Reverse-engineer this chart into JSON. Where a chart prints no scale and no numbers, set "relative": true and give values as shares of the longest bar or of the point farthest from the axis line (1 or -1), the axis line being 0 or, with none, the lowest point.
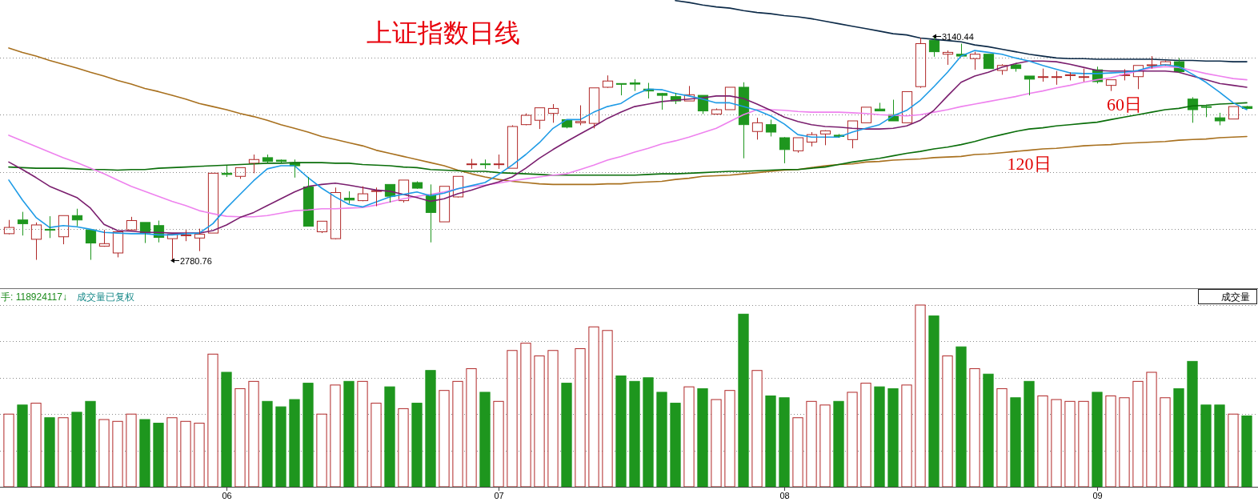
{
  "chart_data": [
    {
      "type": "candlestick",
      "title": "上证指数日线",
      "categories": [
        null,
        null,
        null,
        null,
        null,
        null,
        null,
        null,
        null,
        null,
        null,
        null,
        null,
        null,
        null,
        null,
        null,
        null,
        null,
        null,
        null,
        null,
        null,
        null,
        null,
        null,
        null,
        null,
        null,
        null,
        null,
        null,
        null,
        null,
        null,
        null,
        null,
        null,
        null,
        null,
        null,
        null,
        null,
        null,
        null,
        null,
        null,
        null,
        null,
        null,
        null,
        null,
        null,
        null,
        null,
        null,
        null,
        null,
        null,
        null,
        null,
        null,
        null,
        null,
        null,
        null,
        null,
        null,
        null,
        null,
        null,
        null,
        null,
        null,
        null,
        null,
        null,
        null,
        null,
        null,
        null,
        null,
        null,
        null,
        null,
        null,
        null,
        null,
        null,
        null,
        null,
        null
      ],
      "ohlc": [
        [
          2824,
          2846,
          2823,
          2834
        ],
        [
          2846,
          2859,
          2821,
          2840
        ],
        [
          2815,
          2842,
          2782,
          2838
        ],
        [
          2831,
          2852,
          2817,
          2830
        ],
        [
          2819,
          2853,
          2807,
          2853
        ],
        [
          2853,
          2864,
          2836,
          2846
        ],
        [
          2830,
          2830,
          2782,
          2809
        ],
        [
          2804,
          2830,
          2803,
          2808
        ],
        [
          2793,
          2827,
          2786,
          2827
        ],
        [
          2830,
          2851,
          2830,
          2845
        ],
        [
          2842,
          2842,
          2809,
          2825
        ],
        [
          2837,
          2845,
          2810,
          2818
        ],
        [
          2816,
          2823,
          2780.76,
          2823
        ],
        [
          2821,
          2830,
          2812,
          2822
        ],
        [
          2817,
          2832,
          2796,
          2823
        ],
        [
          2825,
          2921,
          2825,
          2921
        ],
        [
          2921,
          2933,
          2915,
          2919
        ],
        [
          2916,
          2930,
          2912,
          2930
        ],
        [
          2937,
          2951,
          2921,
          2943
        ],
        [
          2946,
          2951,
          2938,
          2940
        ],
        [
          2942,
          2943,
          2938,
          2940
        ],
        [
          2938,
          2943,
          2914,
          2933
        ],
        [
          2899,
          2915,
          2836,
          2836
        ],
        [
          2827,
          2844,
          2825,
          2844
        ],
        [
          2816,
          2898,
          2815,
          2890
        ],
        [
          2881,
          2892,
          2872,
          2878
        ],
        [
          2877,
          2900,
          2876,
          2888
        ],
        [
          2892,
          2898,
          2868,
          2893
        ],
        [
          2903,
          2903,
          2874,
          2884
        ],
        [
          2877,
          2910,
          2874,
          2910
        ],
        [
          2906,
          2908,
          2896,
          2897
        ],
        [
          2885,
          2903,
          2810,
          2858
        ],
        [
          2843,
          2900,
          2843,
          2900
        ],
        [
          2883,
          2916,
          2882,
          2916
        ],
        [
          2935,
          2944,
          2928,
          2936
        ],
        [
          2936,
          2943,
          2928,
          2935
        ],
        [
          2935,
          2951,
          2928,
          2936
        ],
        [
          2929,
          2998,
          2929,
          2996
        ],
        [
          2999,
          3017,
          2998,
          3014
        ],
        [
          3006,
          3026,
          2992,
          3026
        ],
        [
          3017,
          3032,
          3002,
          3025
        ],
        [
          3007,
          3007,
          2993,
          2995
        ],
        [
          3002,
          3030,
          2998,
          3004
        ],
        [
          3001,
          3058,
          2993,
          3058
        ],
        [
          3059,
          3078,
          3058,
          3069
        ],
        [
          3065,
          3065,
          3046,
          3064
        ],
        [
          3066,
          3072,
          3053,
          3064
        ],
        [
          3056,
          3066,
          3041,
          3053
        ],
        [
          3049,
          3050,
          3023,
          3046
        ],
        [
          3044,
          3050,
          3032,
          3037
        ],
        [
          3037,
          3061,
          3037,
          3047
        ],
        [
          3046,
          3046,
          3016,
          3021
        ],
        [
          3016,
          3025,
          3015,
          3023
        ],
        [
          3023,
          3059,
          3023,
          3059
        ],
        [
          3059,
          3067,
          2945,
          2999
        ],
        [
          2988,
          3010,
          2975,
          3002
        ],
        [
          2999,
          3007,
          2980,
          2987
        ],
        [
          2978,
          2979,
          2937,
          2959
        ],
        [
          2957,
          2978,
          2954,
          2978
        ],
        [
          2971,
          2987,
          2964,
          2983
        ],
        [
          2984,
          2990,
          2966,
          2989
        ],
        [
          2982,
          2984,
          2978,
          2980
        ],
        [
          2975,
          3005,
          2961,
          3005
        ],
        [
          3002,
          3027,
          3002,
          3027
        ],
        [
          3024,
          3034,
          3021,
          3021
        ],
        [
          3015,
          3039,
          3005,
          3005
        ],
        [
          3002,
          3052,
          3002,
          3052
        ],
        [
          3060,
          3138,
          3058,
          3129
        ],
        [
          3134,
          3140.44,
          3108,
          3116
        ],
        [
          3112,
          3118,
          3095,
          3115
        ],
        [
          3112,
          3129,
          3109,
          3109
        ],
        [
          3105,
          3116,
          3087,
          3112
        ],
        [
          3112,
          3112,
          3089,
          3089
        ],
        [
          3086,
          3096,
          3079,
          3094
        ],
        [
          3095,
          3096,
          3084,
          3089
        ],
        [
          3077,
          3077,
          3046,
          3072
        ],
        [
          3075,
          3089,
          3068,
          3076
        ],
        [
          3075,
          3085,
          3063,
          3076
        ],
        [
          3078,
          3083,
          3070,
          3079
        ],
        [
          3075,
          3089,
          3068,
          3076
        ],
        [
          3087,
          3092,
          3065,
          3068
        ],
        [
          3062,
          3071,
          3053,
          3071
        ],
        [
          3078,
          3088,
          3070,
          3079
        ],
        [
          3076,
          3094,
          3056,
          3094
        ],
        [
          3094,
          3109,
          3089,
          3095
        ],
        [
          3095,
          3102,
          3094,
          3100
        ],
        [
          3100,
          3106,
          3082,
          3084
        ],
        [
          3040,
          3043,
          3002,
          3023
        ],
        [
          3028,
          3031,
          3011,
          3027
        ],
        [
          3010,
          3018,
          2998,
          3005
        ],
        [
          3008,
          3028,
          3008,
          3028
        ],
        [
          3028,
          3029,
          3024,
          3025
        ]
      ],
      "colors": [
        "#b02828",
        "#1e961e",
        "#b02828",
        "#1e961e",
        "#b02828",
        "#1e961e",
        "#1e961e",
        "#b02828",
        "#b02828",
        "#b02828",
        "#1e961e",
        "#1e961e",
        "#b02828",
        "#b02828",
        "#b02828",
        "#b02828",
        "#1e961e",
        "#b02828",
        "#b02828",
        "#1e961e",
        "#1e961e",
        "#1e961e",
        "#1e961e",
        "#b02828",
        "#b02828",
        "#1e961e",
        "#b02828",
        "#b02828",
        "#1e961e",
        "#b02828",
        "#1e961e",
        "#1e961e",
        "#b02828",
        "#b02828",
        "#b02828",
        "#1e961e",
        "#b02828",
        "#b02828",
        "#b02828",
        "#b02828",
        "#b02828",
        "#1e961e",
        "#b02828",
        "#b02828",
        "#b02828",
        "#1e961e",
        "#1e961e",
        "#1e961e",
        "#1e961e",
        "#1e961e",
        "#b02828",
        "#1e961e",
        "#b02828",
        "#b02828",
        "#1e961e",
        "#b02828",
        "#1e961e",
        "#1e961e",
        "#b02828",
        "#b02828",
        "#b02828",
        "#1e961e",
        "#b02828",
        "#b02828",
        "#1e961e",
        "#1e961e",
        "#b02828",
        "#b02828",
        "#1e961e",
        "#b02828",
        "#1e961e",
        "#b02828",
        "#1e961e",
        "#b02828",
        "#1e961e",
        "#1e961e",
        "#b02828",
        "#b02828",
        "#b02828",
        "#b02828",
        "#1e961e",
        "#b02828",
        "#b02828",
        "#b02828",
        "#b02828",
        "#b02828",
        "#1e961e",
        "#1e961e",
        "#1e961e",
        "#1e961e",
        "#b02828",
        "#1e961e"
      ],
      "series": [
        {
          "type": "line",
          "color": "#0c2a48",
          "values": [
            null,
            null,
            null,
            null,
            null,
            null,
            null,
            null,
            null,
            null,
            null,
            null,
            null,
            null,
            null,
            null,
            null,
            null,
            null,
            null,
            null,
            null,
            null,
            null,
            null,
            null,
            null,
            null,
            null,
            null,
            null,
            null,
            null,
            null,
            null,
            null,
            null,
            null,
            null,
            null,
            null,
            null,
            null,
            null,
            null,
            null,
            null,
            null,
            null,
            3198,
            3195,
            3191,
            3188,
            3186,
            3182,
            3179,
            3177,
            3174,
            3172,
            3169,
            3165,
            3161,
            3157,
            3153,
            3149,
            3145,
            3143,
            3138,
            3136,
            3134,
            3132,
            3127,
            3124,
            3120,
            3116,
            3112,
            3109,
            3106,
            3105,
            3105,
            3104,
            3104,
            3104,
            3104,
            3104,
            3103,
            3102,
            3102,
            3101,
            3101,
            3100,
            3100
          ]
        },
        {
          "type": "line",
          "name": "120日",
          "color": "#a8701e",
          "values": [
            3122,
            3115,
            3109,
            3102,
            3096,
            3090,
            3083,
            3077,
            3070,
            3064,
            3057,
            3052,
            3046,
            3040,
            3033,
            3028,
            3023,
            3017,
            3012,
            3006,
            2999,
            2993,
            2987,
            2980,
            2975,
            2970,
            2965,
            2958,
            2953,
            2948,
            2943,
            2938,
            2933,
            2926,
            2920,
            2915,
            2911,
            2908,
            2906,
            2904,
            2903,
            2903,
            2903,
            2903,
            2904,
            2904,
            2906,
            2907,
            2908,
            2911,
            2913,
            2916,
            2917,
            2918,
            2920,
            2922,
            2924,
            2926,
            2927,
            2930,
            2933,
            2935,
            2936,
            2939,
            2940,
            2942,
            2943,
            2944,
            2946,
            2947,
            2948,
            2951,
            2952,
            2954,
            2956,
            2958,
            2960,
            2961,
            2963,
            2965,
            2966,
            2967,
            2969,
            2970,
            2971,
            2972,
            2974,
            2975,
            2976,
            2978,
            2979,
            2980
          ]
        },
        {
          "type": "line",
          "name": "60日",
          "color": "#0a6e0a",
          "values": [
            2931,
            2930,
            2929,
            2929,
            2929,
            2928,
            2927,
            2927,
            2926,
            2927,
            2927,
            2929,
            2930,
            2931,
            2932,
            2933,
            2934,
            2935,
            2936,
            2937,
            2937,
            2938,
            2938,
            2938,
            2937,
            2937,
            2935,
            2934,
            2933,
            2931,
            2930,
            2927,
            2926,
            2925,
            2924,
            2924,
            2922,
            2921,
            2920,
            2919,
            2918,
            2918,
            2918,
            2918,
            2918,
            2918,
            2918,
            2919,
            2920,
            2920,
            2921,
            2922,
            2923,
            2924,
            2924,
            2925,
            2926,
            2927,
            2927,
            2929,
            2931,
            2935,
            2939,
            2942,
            2945,
            2949,
            2953,
            2956,
            2960,
            2963,
            2967,
            2972,
            2978,
            2983,
            2988,
            2992,
            2994,
            2997,
            2999,
            3001,
            3003,
            3007,
            3011,
            3015,
            3019,
            3023,
            3025,
            3029,
            3030,
            3032,
            3033,
            3034
          ]
        },
        {
          "type": "line",
          "color": "#ee82ee",
          "values": [
            2982,
            2973,
            2964,
            2955,
            2946,
            2938,
            2929,
            2920,
            2910,
            2900,
            2892,
            2884,
            2876,
            2869,
            2861,
            2856,
            2852,
            2851,
            2851,
            2853,
            2857,
            2861,
            2862,
            2864,
            2864,
            2865,
            2866,
            2870,
            2875,
            2880,
            2884,
            2887,
            2891,
            2896,
            2900,
            2902,
            2905,
            2909,
            2912,
            2915,
            2918,
            2920,
            2927,
            2934,
            2942,
            2948,
            2955,
            2961,
            2968,
            2973,
            2979,
            2986,
            2993,
            3004,
            3015,
            3023,
            3023,
            3022,
            3020,
            3019,
            3019,
            3019,
            3018,
            3017,
            3015,
            3014,
            3013,
            3015,
            3019,
            3023,
            3028,
            3032,
            3036,
            3040,
            3044,
            3049,
            3053,
            3058,
            3062,
            3067,
            3071,
            3074,
            3080,
            3085,
            3090,
            3092,
            3091,
            3086,
            3081,
            3077,
            3073,
            3071
          ]
        },
        {
          "type": "line",
          "color": "#7a1e6e",
          "values": [
            2939,
            2927,
            2914,
            2900,
            2891,
            2882,
            2865,
            2839,
            2829,
            2828,
            2826,
            2826,
            2825,
            2825,
            2825,
            2829,
            2838,
            2850,
            2858,
            2869,
            2880,
            2891,
            2900,
            2903,
            2905,
            2902,
            2898,
            2894,
            2892,
            2887,
            2882,
            2876,
            2880,
            2888,
            2894,
            2901,
            2907,
            2915,
            2929,
            2945,
            2959,
            2972,
            2984,
            2996,
            3009,
            3019,
            3028,
            3032,
            3036,
            3038,
            3040,
            3042,
            3045,
            3045,
            3041,
            3032,
            3022,
            3011,
            3004,
            2999,
            2996,
            2995,
            2993,
            2992,
            2992,
            2993,
            2997,
            3006,
            3022,
            3045,
            3067,
            3077,
            3083,
            3091,
            3097,
            3101,
            3101,
            3100,
            3096,
            3091,
            3086,
            3085,
            3085,
            3085,
            3085,
            3085,
            3083,
            3077,
            3071,
            3065,
            3062,
            3059
          ]
        },
        {
          "type": "line",
          "color": "#1e9be6",
          "values": [
            2910,
            2878,
            2850,
            2834,
            2837,
            2835,
            2831,
            2826,
            2825,
            2824,
            2824,
            2822,
            2822,
            2824,
            2825,
            2840,
            2865,
            2887,
            2909,
            2928,
            2933,
            2933,
            2914,
            2897,
            2883,
            2871,
            2867,
            2875,
            2883,
            2887,
            2891,
            2885,
            2889,
            2896,
            2901,
            2906,
            2919,
            2934,
            2951,
            2970,
            2993,
            3007,
            3007,
            3019,
            3028,
            3033,
            3047,
            3056,
            3055,
            3049,
            3045,
            3040,
            3034,
            3034,
            3028,
            3022,
            3013,
            3000,
            2983,
            2979,
            2979,
            2979,
            2987,
            2993,
            2999,
            3013,
            3022,
            3038,
            3060,
            3083,
            3109,
            3118,
            3115,
            3112,
            3106,
            3101,
            3094,
            3088,
            3082,
            3081,
            3081,
            3082,
            3083,
            3086,
            3092,
            3095,
            3092,
            3080,
            3067,
            3051,
            3034,
            3023
          ]
        }
      ],
      "grid": "y",
      "tick_labels": false,
      "annotations": [
        "3140.44",
        "2780.76"
      ]
    },
    {
      "type": "bar",
      "relative": true,
      "categories": [
        null,
        null,
        null,
        null,
        null,
        null,
        null,
        null,
        null,
        null,
        null,
        null,
        null,
        null,
        null,
        null,
        "06",
        null,
        null,
        null,
        null,
        null,
        null,
        null,
        null,
        null,
        null,
        null,
        null,
        null,
        null,
        null,
        null,
        null,
        null,
        null,
        "07",
        null,
        null,
        null,
        null,
        null,
        null,
        null,
        null,
        null,
        null,
        null,
        null,
        null,
        null,
        null,
        null,
        null,
        null,
        null,
        null,
        "08",
        null,
        null,
        null,
        null,
        null,
        null,
        null,
        null,
        null,
        null,
        null,
        null,
        null,
        null,
        null,
        null,
        null,
        null,
        null,
        null,
        null,
        null,
        "09",
        null,
        null,
        null,
        null,
        null,
        null,
        null,
        null,
        null,
        null,
        null
      ],
      "values": [
        0.4,
        0.45,
        0.46,
        0.38,
        0.38,
        0.41,
        0.47,
        0.37,
        0.36,
        0.4,
        0.37,
        0.35,
        0.38,
        0.36,
        0.35,
        0.73,
        0.63,
        0.54,
        0.58,
        0.47,
        0.44,
        0.48,
        0.57,
        0.4,
        0.56,
        0.58,
        0.58,
        0.46,
        0.55,
        0.43,
        0.46,
        0.64,
        0.53,
        0.58,
        0.65,
        0.52,
        0.47,
        0.75,
        0.79,
        0.72,
        0.75,
        0.57,
        0.76,
        0.88,
        0.86,
        0.61,
        0.58,
        0.6,
        0.52,
        0.46,
        0.55,
        0.54,
        0.48,
        0.53,
        0.95,
        0.64,
        0.5,
        0.49,
        0.38,
        0.47,
        0.45,
        0.47,
        0.52,
        0.57,
        0.55,
        0.54,
        0.56,
        1,
        0.94,
        0.72,
        0.77,
        0.65,
        0.62,
        0.54,
        0.49,
        0.58,
        0.5,
        0.48,
        0.47,
        0.47,
        0.52,
        0.5,
        0.49,
        0.58,
        0.63,
        0.49,
        0.54,
        0.69,
        0.45,
        0.45,
        0.4,
        0.39
      ],
      "colors": [
        "#b02828",
        "#1e961e",
        "#b02828",
        "#1e961e",
        "#b02828",
        "#1e961e",
        "#1e961e",
        "#b02828",
        "#b02828",
        "#b02828",
        "#1e961e",
        "#1e961e",
        "#b02828",
        "#b02828",
        "#b02828",
        "#b02828",
        "#1e961e",
        "#b02828",
        "#b02828",
        "#1e961e",
        "#1e961e",
        "#1e961e",
        "#1e961e",
        "#b02828",
        "#b02828",
        "#1e961e",
        "#b02828",
        "#b02828",
        "#1e961e",
        "#b02828",
        "#1e961e",
        "#1e961e",
        "#b02828",
        "#b02828",
        "#b02828",
        "#1e961e",
        "#b02828",
        "#b02828",
        "#b02828",
        "#b02828",
        "#b02828",
        "#1e961e",
        "#b02828",
        "#b02828",
        "#b02828",
        "#1e961e",
        "#1e961e",
        "#1e961e",
        "#1e961e",
        "#1e961e",
        "#b02828",
        "#1e961e",
        "#b02828",
        "#b02828",
        "#1e961e",
        "#b02828",
        "#1e961e",
        "#1e961e",
        "#b02828",
        "#b02828",
        "#b02828",
        "#1e961e",
        "#b02828",
        "#b02828",
        "#1e961e",
        "#1e961e",
        "#b02828",
        "#b02828",
        "#1e961e",
        "#b02828",
        "#1e961e",
        "#b02828",
        "#1e961e",
        "#b02828",
        "#1e961e",
        "#1e961e",
        "#b02828",
        "#b02828",
        "#b02828",
        "#b02828",
        "#1e961e",
        "#b02828",
        "#b02828",
        "#b02828",
        "#b02828",
        "#b02828",
        "#1e961e",
        "#1e961e",
        "#1e961e",
        "#1e961e",
        "#b02828",
        "#1e961e"
      ],
      "grid": "y",
      "tick_labels": "x",
      "annotations": [
        "手: 118924117↓",
        "成交量已复权",
        "成交量"
      ]
    }
  ]
}
